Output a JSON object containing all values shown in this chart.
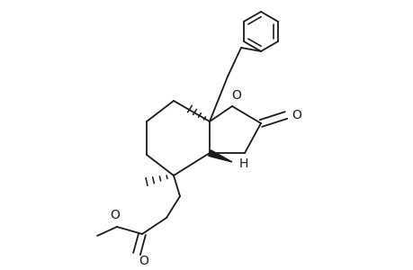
{
  "background": "#ffffff",
  "line_color": "#1a1a1a",
  "line_width": 1.3,
  "fig_width": 4.6,
  "fig_height": 3.0,
  "dpi": 100,
  "xlim": [
    0,
    460
  ],
  "ylim": [
    0,
    300
  ]
}
